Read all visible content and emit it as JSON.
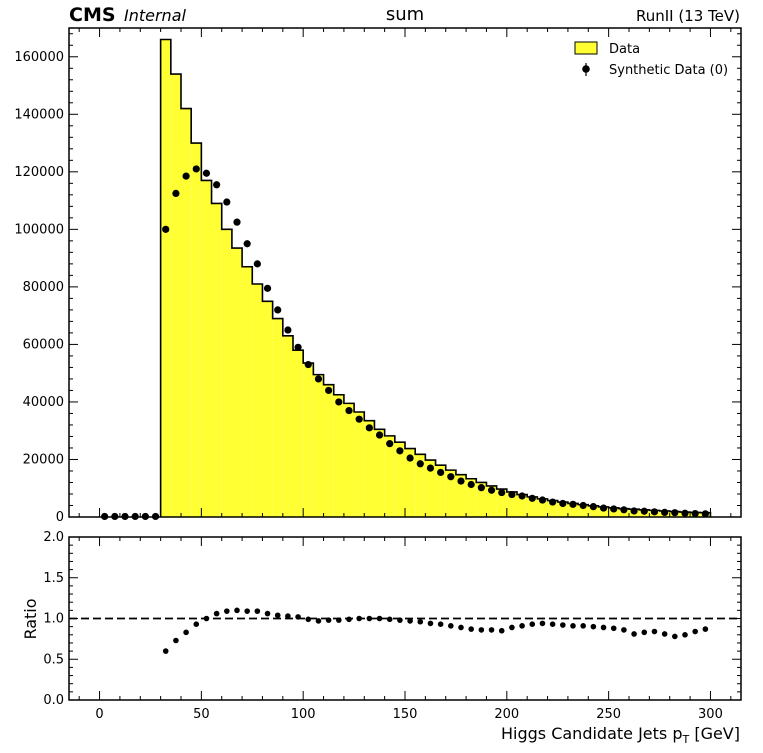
{
  "header": {
    "cms_label": "CMS",
    "internal_label": "Internal",
    "center_title": "sum",
    "run_label": "RunII (13 TeV)"
  },
  "chart_data": [
    {
      "type": "bar",
      "panel": "main",
      "xlim": [
        -15,
        315
      ],
      "ylim": [
        0,
        170000
      ],
      "grid": false,
      "legend_placement": "top-right",
      "x_ticks": [
        0,
        50,
        100,
        150,
        200,
        250,
        300
      ],
      "y_ticks": [
        0,
        20000,
        40000,
        60000,
        80000,
        100000,
        120000,
        140000,
        160000
      ],
      "y_tick_labels": [
        "0",
        "20000",
        "40000",
        "60000",
        "80000",
        "100000",
        "120000",
        "140000",
        "160000"
      ],
      "bin_edges": [
        0,
        5,
        10,
        15,
        20,
        25,
        30,
        35,
        40,
        45,
        50,
        55,
        60,
        65,
        70,
        75,
        80,
        85,
        90,
        95,
        100,
        105,
        110,
        115,
        120,
        125,
        130,
        135,
        140,
        145,
        150,
        155,
        160,
        165,
        170,
        175,
        180,
        185,
        190,
        195,
        200,
        205,
        210,
        215,
        220,
        225,
        230,
        235,
        240,
        245,
        250,
        255,
        260,
        265,
        270,
        275,
        280,
        285,
        290,
        295,
        300
      ],
      "series": [
        {
          "name": "Data",
          "style": "filled-step",
          "color": "#ffff33",
          "edge_color": "#000000",
          "values": [
            0,
            0,
            0,
            0,
            0,
            0,
            166000,
            154000,
            142000,
            130000,
            117000,
            109000,
            100000,
            93500,
            87000,
            81000,
            75000,
            69000,
            63000,
            58000,
            53500,
            49500,
            46000,
            42500,
            39500,
            36500,
            33500,
            30500,
            28200,
            26000,
            23800,
            21800,
            19800,
            18000,
            16300,
            14700,
            13300,
            12000,
            10800,
            9700,
            8700,
            7800,
            7000,
            6300,
            5700,
            5200,
            4700,
            4300,
            3900,
            3500,
            3200,
            2900,
            2700,
            2500,
            2300,
            2100,
            1900,
            1700,
            1600,
            1500
          ]
        },
        {
          "name": "Synthetic Data (0)",
          "style": "points",
          "color": "#000000",
          "x": [
            2.5,
            7.5,
            12.5,
            17.5,
            22.5,
            27.5,
            32.5,
            37.5,
            42.5,
            47.5,
            52.5,
            57.5,
            62.5,
            67.5,
            72.5,
            77.5,
            82.5,
            87.5,
            92.5,
            97.5,
            102.5,
            107.5,
            112.5,
            117.5,
            122.5,
            127.5,
            132.5,
            137.5,
            142.5,
            147.5,
            152.5,
            157.5,
            162.5,
            167.5,
            172.5,
            177.5,
            182.5,
            187.5,
            192.5,
            197.5,
            202.5,
            207.5,
            212.5,
            217.5,
            222.5,
            227.5,
            232.5,
            237.5,
            242.5,
            247.5,
            252.5,
            257.5,
            262.5,
            267.5,
            272.5,
            277.5,
            282.5,
            287.5,
            292.5,
            297.5
          ],
          "values": [
            200,
            200,
            200,
            200,
            200,
            200,
            100000,
            112500,
            118500,
            121000,
            119500,
            115500,
            109500,
            102500,
            95000,
            88000,
            79500,
            72000,
            65000,
            59000,
            53000,
            48000,
            44000,
            40000,
            37000,
            34000,
            31000,
            28500,
            25500,
            23000,
            20500,
            18500,
            17000,
            15500,
            14000,
            12500,
            11300,
            10200,
            9300,
            8500,
            7800,
            7300,
            6500,
            5900,
            5200,
            4700,
            4400,
            4000,
            3600,
            3100,
            2800,
            2500,
            2100,
            2000,
            1800,
            1600,
            1500,
            1300,
            1200,
            1100
          ]
        }
      ]
    },
    {
      "type": "scatter",
      "panel": "ratio",
      "xlabel": "Higgs Candidate Jets p",
      "xlabel_sub": "T",
      "xlabel_unit": " [GeV]",
      "ylabel": "Ratio",
      "xlim": [
        -15,
        315
      ],
      "ylim": [
        0,
        2
      ],
      "grid": false,
      "x_ticks": [
        0,
        50,
        100,
        150,
        200,
        250,
        300
      ],
      "x_tick_labels": [
        "0",
        "50",
        "100",
        "150",
        "200",
        "250",
        "300"
      ],
      "y_ticks": [
        0,
        0.5,
        1,
        1.5,
        2
      ],
      "y_tick_labels": [
        "0.0",
        "0.5",
        "1.0",
        "1.5",
        "2.0"
      ],
      "reference_line": 1.0,
      "x": [
        32.5,
        37.5,
        42.5,
        47.5,
        52.5,
        57.5,
        62.5,
        67.5,
        72.5,
        77.5,
        82.5,
        87.5,
        92.5,
        97.5,
        102.5,
        107.5,
        112.5,
        117.5,
        122.5,
        127.5,
        132.5,
        137.5,
        142.5,
        147.5,
        152.5,
        157.5,
        162.5,
        167.5,
        172.5,
        177.5,
        182.5,
        187.5,
        192.5,
        197.5,
        202.5,
        207.5,
        212.5,
        217.5,
        222.5,
        227.5,
        232.5,
        237.5,
        242.5,
        247.5,
        252.5,
        257.5,
        262.5,
        267.5,
        272.5,
        277.5,
        282.5,
        287.5,
        292.5,
        297.5
      ],
      "values": [
        0.6,
        0.73,
        0.83,
        0.93,
        1.0,
        1.06,
        1.09,
        1.1,
        1.09,
        1.09,
        1.06,
        1.04,
        1.03,
        1.02,
        0.99,
        0.97,
        0.98,
        0.98,
        0.99,
        1.0,
        1.0,
        1.0,
        0.99,
        0.98,
        0.97,
        0.96,
        0.94,
        0.93,
        0.91,
        0.89,
        0.87,
        0.86,
        0.86,
        0.85,
        0.89,
        0.91,
        0.93,
        0.94,
        0.93,
        0.92,
        0.91,
        0.91,
        0.9,
        0.89,
        0.88,
        0.86,
        0.81,
        0.83,
        0.84,
        0.81,
        0.78,
        0.8,
        0.84,
        0.87
      ]
    }
  ]
}
